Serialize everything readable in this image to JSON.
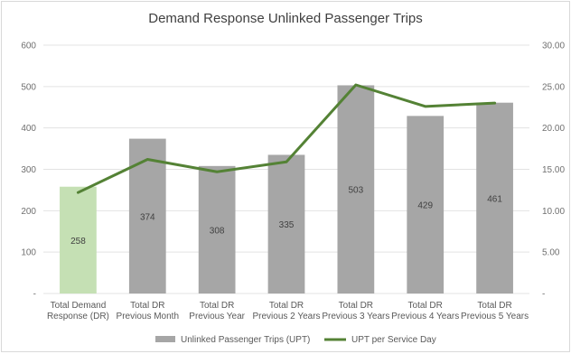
{
  "chart_data": {
    "type": "bar+line",
    "title": "Demand Response Unlinked Passenger Trips",
    "categories": [
      [
        "Total Demand",
        "Response (DR)"
      ],
      [
        "Total DR",
        "Previous Month"
      ],
      [
        "Total DR",
        "Previous Year"
      ],
      [
        "Total DR",
        "Previous 2 Years"
      ],
      [
        "Total DR",
        "Previous 3 Years"
      ],
      [
        "Total DR",
        "Previous 4 Years"
      ],
      [
        "Total DR",
        "Previous 5 Years"
      ]
    ],
    "series": [
      {
        "name": "Unlinked Passenger Trips (UPT)",
        "type": "bar",
        "axis": "left",
        "values": [
          258,
          374,
          308,
          335,
          503,
          429,
          461
        ],
        "colors": [
          "#c5e0b4",
          "#a6a6a6",
          "#a6a6a6",
          "#a6a6a6",
          "#a6a6a6",
          "#a6a6a6",
          "#a6a6a6"
        ]
      },
      {
        "name": "UPT per Service Day",
        "type": "line",
        "axis": "right",
        "values": [
          12.2,
          16.2,
          14.7,
          15.9,
          25.2,
          22.6,
          23.0
        ],
        "color": "#548235"
      }
    ],
    "y_left": {
      "min": 0,
      "max": 600,
      "step": 100,
      "ticks": [
        "-",
        "100",
        "200",
        "300",
        "400",
        "500",
        "600"
      ]
    },
    "y_right": {
      "min": 0,
      "max": 30,
      "step": 5,
      "ticks": [
        "-",
        "5.00",
        "10.00",
        "15.00",
        "20.00",
        "25.00",
        "30.00"
      ]
    },
    "grid": true,
    "legend": "bottom"
  }
}
